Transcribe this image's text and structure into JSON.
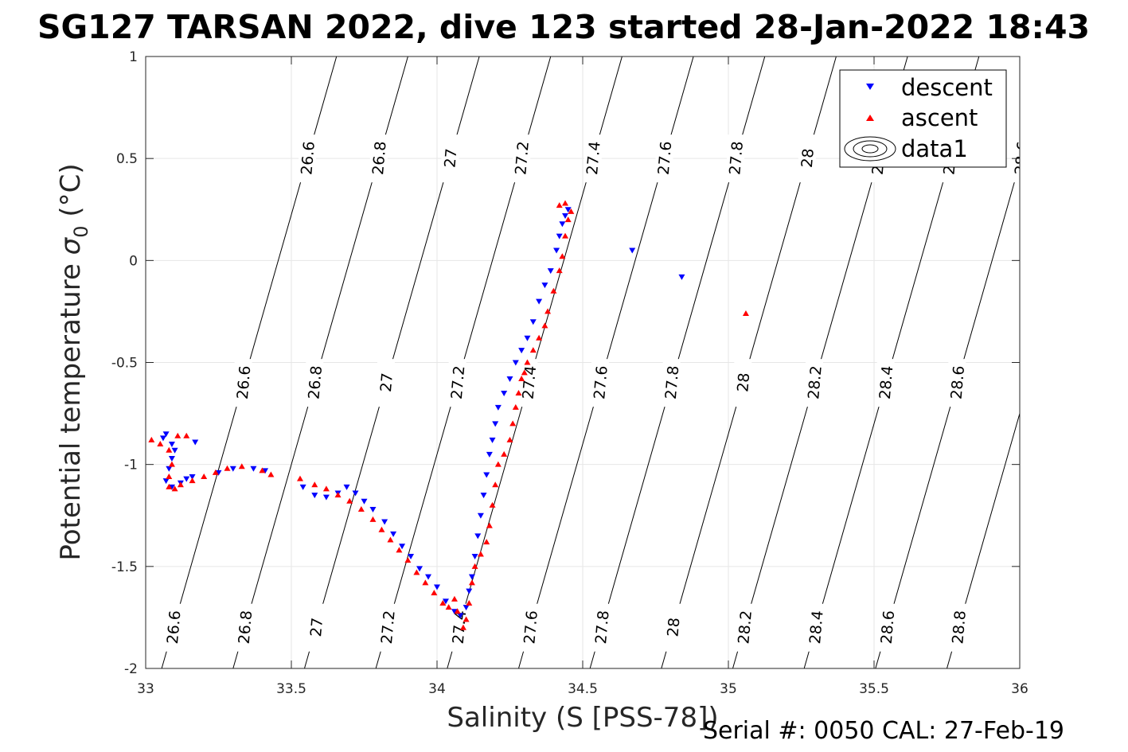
{
  "title": "SG127 TARSAN 2022, dive 123 started 28-Jan-2022 18:43",
  "footer": "Serial #: 0050  CAL: 27-Feb-19",
  "chart_data": {
    "type": "scatter",
    "title": "SG127 TARSAN 2022, dive 123 started 28-Jan-2022 18:43",
    "xlabel": "Salinity (S [PSS-78])",
    "ylabel_main": "Potential temperature ",
    "ylabel_sigma": "σ",
    "ylabel_sub": "0",
    "ylabel_unit": " (°C)",
    "xlim": [
      33,
      36
    ],
    "ylim": [
      -2,
      1
    ],
    "xticks": [
      33,
      33.5,
      34,
      34.5,
      35,
      35.5,
      36
    ],
    "xtick_labels": [
      "33",
      "33.5",
      "34",
      "34.5",
      "35",
      "35.5",
      "36"
    ],
    "yticks": [
      1,
      0.5,
      0,
      -0.5,
      -1,
      -1.5,
      -2
    ],
    "ytick_labels": [
      "1",
      "0.5",
      "0",
      "-0.5",
      "-1",
      "-1.5",
      "-2"
    ],
    "grid": true,
    "legend_position": "top-right",
    "colors": {
      "descent": "#0000ff",
      "ascent": "#ff0000",
      "contour": "#000000",
      "grid": "#e6e6e6",
      "axes": "#262626"
    },
    "series": [
      {
        "name": "descent",
        "marker": "triangle-down",
        "color": "#0000ff",
        "points": [
          [
            33.06,
            -0.87
          ],
          [
            33.07,
            -0.85
          ],
          [
            33.09,
            -0.9
          ],
          [
            33.1,
            -0.93
          ],
          [
            33.09,
            -0.97
          ],
          [
            33.08,
            -1.02
          ],
          [
            33.07,
            -1.08
          ],
          [
            33.09,
            -1.11
          ],
          [
            33.12,
            -1.09
          ],
          [
            33.14,
            -1.07
          ],
          [
            33.16,
            -1.06
          ],
          [
            33.17,
            -0.89
          ],
          [
            33.25,
            -1.04
          ],
          [
            33.3,
            -1.02
          ],
          [
            33.37,
            -1.02
          ],
          [
            33.41,
            -1.03
          ],
          [
            33.54,
            -1.11
          ],
          [
            33.58,
            -1.15
          ],
          [
            33.62,
            -1.16
          ],
          [
            33.66,
            -1.14
          ],
          [
            33.69,
            -1.11
          ],
          [
            33.72,
            -1.14
          ],
          [
            33.75,
            -1.18
          ],
          [
            33.78,
            -1.22
          ],
          [
            33.82,
            -1.28
          ],
          [
            33.85,
            -1.34
          ],
          [
            33.88,
            -1.4
          ],
          [
            33.91,
            -1.45
          ],
          [
            33.94,
            -1.51
          ],
          [
            33.97,
            -1.55
          ],
          [
            34.0,
            -1.6
          ],
          [
            34.03,
            -1.67
          ],
          [
            34.06,
            -1.72
          ],
          [
            34.08,
            -1.74
          ],
          [
            34.1,
            -1.7
          ],
          [
            34.11,
            -1.62
          ],
          [
            34.12,
            -1.55
          ],
          [
            34.13,
            -1.45
          ],
          [
            34.14,
            -1.35
          ],
          [
            34.15,
            -1.25
          ],
          [
            34.16,
            -1.15
          ],
          [
            34.17,
            -1.05
          ],
          [
            34.18,
            -0.95
          ],
          [
            34.19,
            -0.88
          ],
          [
            34.2,
            -0.8
          ],
          [
            34.21,
            -0.72
          ],
          [
            34.23,
            -0.65
          ],
          [
            34.25,
            -0.58
          ],
          [
            34.27,
            -0.5
          ],
          [
            34.29,
            -0.44
          ],
          [
            34.31,
            -0.38
          ],
          [
            34.33,
            -0.3
          ],
          [
            34.35,
            -0.2
          ],
          [
            34.37,
            -0.12
          ],
          [
            34.39,
            -0.05
          ],
          [
            34.41,
            0.05
          ],
          [
            34.42,
            0.12
          ],
          [
            34.43,
            0.18
          ],
          [
            34.44,
            0.22
          ],
          [
            34.45,
            0.25
          ],
          [
            34.67,
            0.05
          ],
          [
            34.84,
            -0.08
          ]
        ]
      },
      {
        "name": "ascent",
        "marker": "triangle-up",
        "color": "#ff0000",
        "points": [
          [
            33.02,
            -0.88
          ],
          [
            33.05,
            -0.9
          ],
          [
            33.08,
            -0.93
          ],
          [
            33.11,
            -0.86
          ],
          [
            33.14,
            -0.86
          ],
          [
            33.09,
            -1.0
          ],
          [
            33.08,
            -1.06
          ],
          [
            33.08,
            -1.11
          ],
          [
            33.1,
            -1.12
          ],
          [
            33.12,
            -1.1
          ],
          [
            33.16,
            -1.08
          ],
          [
            33.2,
            -1.06
          ],
          [
            33.24,
            -1.04
          ],
          [
            33.28,
            -1.02
          ],
          [
            33.33,
            -1.01
          ],
          [
            33.4,
            -1.03
          ],
          [
            33.43,
            -1.05
          ],
          [
            33.53,
            -1.07
          ],
          [
            33.58,
            -1.1
          ],
          [
            33.62,
            -1.12
          ],
          [
            33.66,
            -1.15
          ],
          [
            33.7,
            -1.18
          ],
          [
            33.74,
            -1.22
          ],
          [
            33.78,
            -1.27
          ],
          [
            33.81,
            -1.32
          ],
          [
            33.84,
            -1.37
          ],
          [
            33.87,
            -1.42
          ],
          [
            33.9,
            -1.47
          ],
          [
            33.93,
            -1.53
          ],
          [
            33.96,
            -1.58
          ],
          [
            33.99,
            -1.63
          ],
          [
            34.02,
            -1.68
          ],
          [
            34.04,
            -1.7
          ],
          [
            34.06,
            -1.66
          ],
          [
            34.07,
            -1.72
          ],
          [
            34.09,
            -1.8
          ],
          [
            34.1,
            -1.76
          ],
          [
            34.11,
            -1.68
          ],
          [
            34.12,
            -1.58
          ],
          [
            34.13,
            -1.5
          ],
          [
            34.15,
            -1.44
          ],
          [
            34.17,
            -1.38
          ],
          [
            34.18,
            -1.3
          ],
          [
            34.19,
            -1.2
          ],
          [
            34.2,
            -1.1
          ],
          [
            34.21,
            -1.0
          ],
          [
            34.23,
            -0.95
          ],
          [
            34.25,
            -0.88
          ],
          [
            34.26,
            -0.8
          ],
          [
            34.27,
            -0.72
          ],
          [
            34.28,
            -0.65
          ],
          [
            34.29,
            -0.58
          ],
          [
            34.3,
            -0.55
          ],
          [
            34.31,
            -0.5
          ],
          [
            34.33,
            -0.44
          ],
          [
            34.35,
            -0.38
          ],
          [
            34.37,
            -0.32
          ],
          [
            34.38,
            -0.25
          ],
          [
            34.4,
            -0.15
          ],
          [
            34.42,
            -0.05
          ],
          [
            34.43,
            0.02
          ],
          [
            34.44,
            0.12
          ],
          [
            34.45,
            0.2
          ],
          [
            34.46,
            0.24
          ],
          [
            34.44,
            0.28
          ],
          [
            34.42,
            0.27
          ],
          [
            35.06,
            -0.26
          ]
        ]
      }
    ],
    "contour_levels": [
      "26.6",
      "26.8",
      "27",
      "27.2",
      "27.4",
      "27.6",
      "27.8",
      "28",
      "28.2",
      "28.4",
      "28.6",
      "28.8"
    ],
    "legend": {
      "entries": [
        "descent",
        "ascent",
        "data1"
      ]
    }
  }
}
